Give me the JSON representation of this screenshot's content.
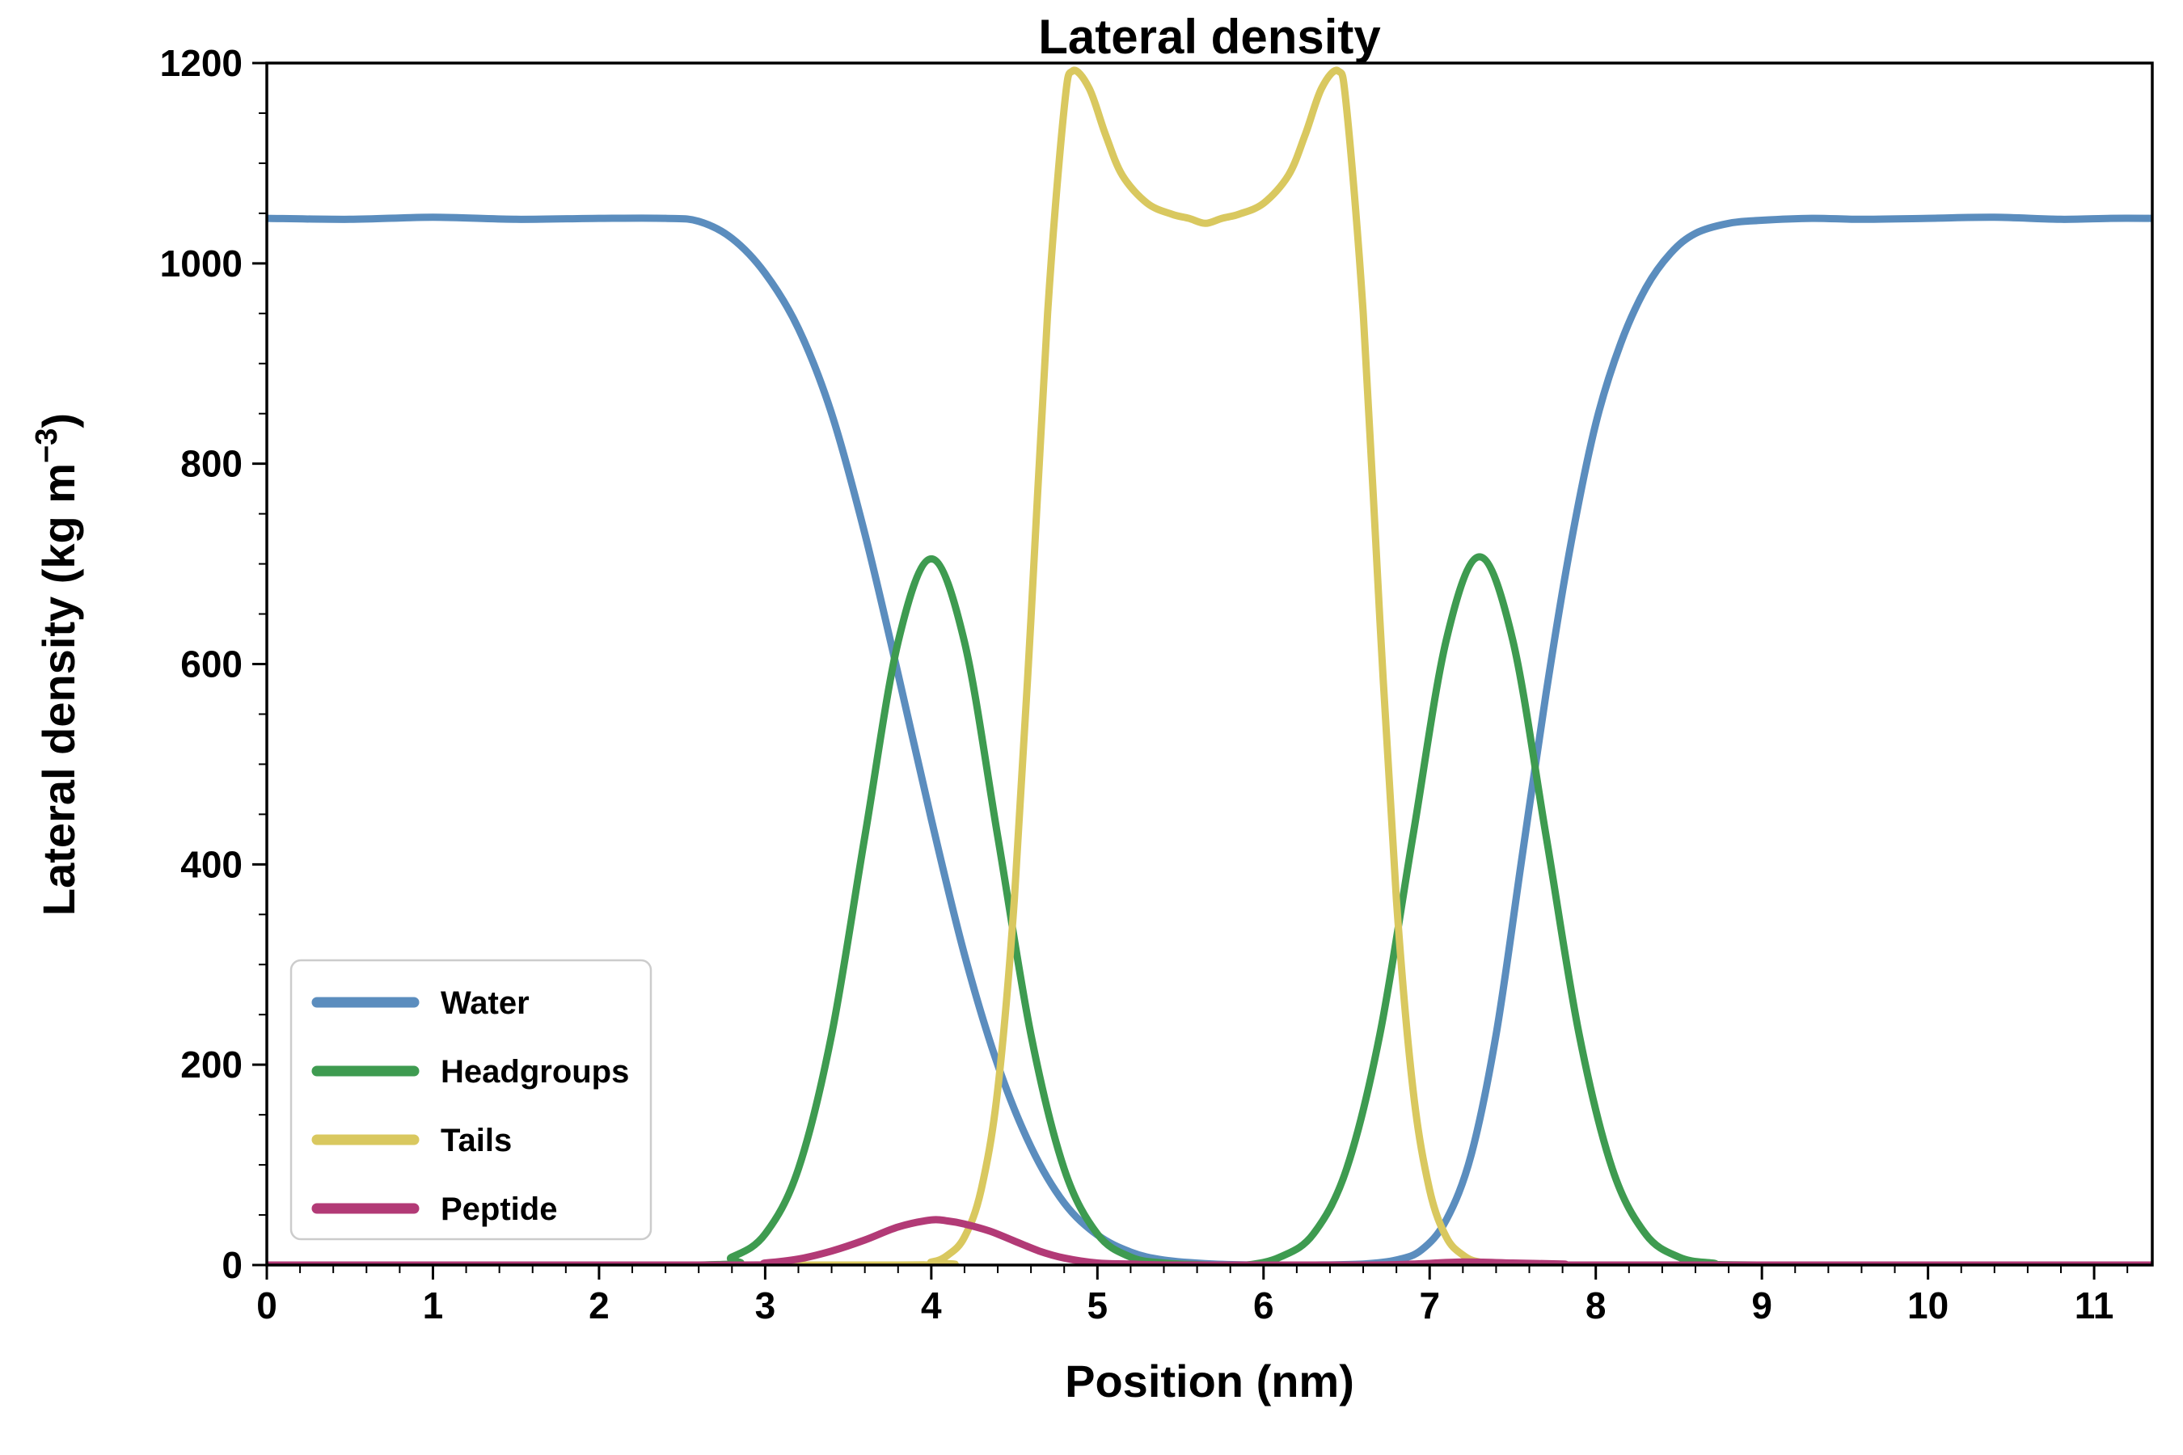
{
  "figure": {
    "background": "#ffffff",
    "frame_color": "#000000"
  },
  "chart_data": {
    "type": "line",
    "title": "Lateral density",
    "xlabel": "Position (nm)",
    "ylabel": "Lateral density (kg m⁻³)",
    "ylabel_parts": {
      "prefix": "Lateral density (kg m",
      "superscript": "−3",
      "suffix": ")"
    },
    "xlim": [
      0,
      11.35
    ],
    "ylim": [
      0,
      1200
    ],
    "xticks": [
      0,
      1,
      2,
      3,
      4,
      5,
      6,
      7,
      8,
      9,
      10,
      11
    ],
    "yticks": [
      0,
      200,
      400,
      600,
      800,
      1000,
      1200
    ],
    "x_minor_step": 0.2,
    "y_minor_step": 50,
    "grid": false,
    "legend": {
      "position": "lower-left"
    },
    "series": [
      {
        "name": "Water",
        "color": "#5b8dbe",
        "points": [
          [
            0,
            1045
          ],
          [
            0.5,
            1044
          ],
          [
            1.0,
            1046
          ],
          [
            1.5,
            1044
          ],
          [
            2.0,
            1045
          ],
          [
            2.4,
            1045
          ],
          [
            2.6,
            1042
          ],
          [
            2.8,
            1025
          ],
          [
            3.0,
            990
          ],
          [
            3.2,
            935
          ],
          [
            3.4,
            850
          ],
          [
            3.6,
            730
          ],
          [
            3.8,
            590
          ],
          [
            4.0,
            445
          ],
          [
            4.2,
            310
          ],
          [
            4.4,
            200
          ],
          [
            4.6,
            118
          ],
          [
            4.8,
            62
          ],
          [
            5.0,
            30
          ],
          [
            5.2,
            13
          ],
          [
            5.4,
            5
          ],
          [
            5.7,
            1
          ],
          [
            6.0,
            0
          ],
          [
            6.3,
            0
          ],
          [
            6.6,
            1
          ],
          [
            6.8,
            5
          ],
          [
            6.95,
            15
          ],
          [
            7.1,
            45
          ],
          [
            7.25,
            110
          ],
          [
            7.4,
            230
          ],
          [
            7.55,
            400
          ],
          [
            7.7,
            570
          ],
          [
            7.85,
            720
          ],
          [
            8.0,
            840
          ],
          [
            8.15,
            920
          ],
          [
            8.3,
            975
          ],
          [
            8.45,
            1010
          ],
          [
            8.6,
            1030
          ],
          [
            8.8,
            1040
          ],
          [
            9.0,
            1043
          ],
          [
            9.3,
            1045
          ],
          [
            9.6,
            1044
          ],
          [
            10.0,
            1045
          ],
          [
            10.4,
            1046
          ],
          [
            10.8,
            1044
          ],
          [
            11.1,
            1045
          ],
          [
            11.35,
            1045
          ]
        ]
      },
      {
        "name": "Headgroups",
        "color": "#3e9b50",
        "points": [
          [
            0,
            0
          ],
          [
            2.6,
            0
          ],
          [
            2.8,
            8
          ],
          [
            3.0,
            31
          ],
          [
            3.2,
            96
          ],
          [
            3.4,
            230
          ],
          [
            3.6,
            428
          ],
          [
            3.8,
            622
          ],
          [
            4.0,
            705
          ],
          [
            4.2,
            622
          ],
          [
            4.4,
            428
          ],
          [
            4.6,
            230
          ],
          [
            4.8,
            96
          ],
          [
            5.0,
            31
          ],
          [
            5.2,
            8
          ],
          [
            5.4,
            2
          ],
          [
            5.7,
            0
          ],
          [
            5.9,
            0
          ],
          [
            6.1,
            8
          ],
          [
            6.3,
            31
          ],
          [
            6.5,
            96
          ],
          [
            6.7,
            230
          ],
          [
            6.9,
            429
          ],
          [
            7.1,
            624
          ],
          [
            7.3,
            707
          ],
          [
            7.5,
            624
          ],
          [
            7.7,
            429
          ],
          [
            7.9,
            230
          ],
          [
            8.1,
            96
          ],
          [
            8.3,
            31
          ],
          [
            8.5,
            8
          ],
          [
            8.7,
            2
          ],
          [
            9.0,
            0
          ],
          [
            11.35,
            0
          ]
        ]
      },
      {
        "name": "Tails",
        "color": "#d9c85f",
        "points": [
          [
            0,
            0
          ],
          [
            3.8,
            0
          ],
          [
            4.0,
            3
          ],
          [
            4.1,
            10
          ],
          [
            4.2,
            28
          ],
          [
            4.3,
            75
          ],
          [
            4.4,
            175
          ],
          [
            4.5,
            365
          ],
          [
            4.6,
            645
          ],
          [
            4.7,
            950
          ],
          [
            4.8,
            1155
          ],
          [
            4.85,
            1192
          ],
          [
            4.95,
            1175
          ],
          [
            5.05,
            1128
          ],
          [
            5.15,
            1088
          ],
          [
            5.3,
            1060
          ],
          [
            5.45,
            1049
          ],
          [
            5.55,
            1045
          ],
          [
            5.65,
            1040
          ],
          [
            5.75,
            1045
          ],
          [
            5.85,
            1049
          ],
          [
            6.0,
            1060
          ],
          [
            6.15,
            1088
          ],
          [
            6.25,
            1128
          ],
          [
            6.35,
            1175
          ],
          [
            6.45,
            1192
          ],
          [
            6.5,
            1155
          ],
          [
            6.6,
            950
          ],
          [
            6.7,
            645
          ],
          [
            6.8,
            365
          ],
          [
            6.9,
            175
          ],
          [
            7.0,
            75
          ],
          [
            7.1,
            28
          ],
          [
            7.2,
            10
          ],
          [
            7.3,
            3
          ],
          [
            7.5,
            0
          ],
          [
            11.35,
            0
          ]
        ]
      },
      {
        "name": "Peptide",
        "color": "#b23a76",
        "points": [
          [
            0,
            0
          ],
          [
            2.8,
            0
          ],
          [
            3.0,
            2
          ],
          [
            3.2,
            6
          ],
          [
            3.4,
            14
          ],
          [
            3.6,
            25
          ],
          [
            3.8,
            38
          ],
          [
            4.0,
            45
          ],
          [
            4.1,
            44
          ],
          [
            4.2,
            41
          ],
          [
            4.35,
            34
          ],
          [
            4.5,
            24
          ],
          [
            4.65,
            14
          ],
          [
            4.8,
            7
          ],
          [
            5.0,
            2
          ],
          [
            5.2,
            1
          ],
          [
            5.5,
            0
          ],
          [
            6.6,
            0
          ],
          [
            6.9,
            1
          ],
          [
            7.2,
            3
          ],
          [
            7.5,
            2
          ],
          [
            7.8,
            1
          ],
          [
            8.1,
            0
          ],
          [
            11.35,
            0
          ]
        ]
      }
    ]
  }
}
